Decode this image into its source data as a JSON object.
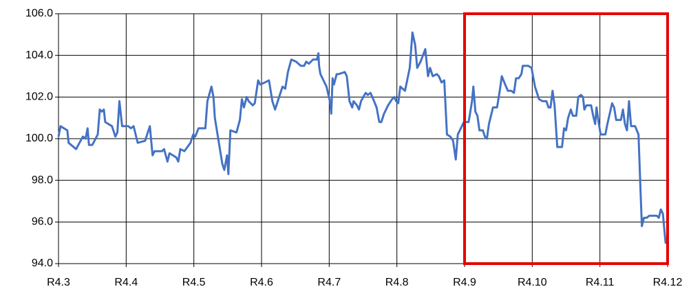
{
  "chart_data": {
    "type": "line",
    "x": [
      0,
      0.03,
      0.13,
      0.15,
      0.26,
      0.36,
      0.4,
      0.43,
      0.45,
      0.5,
      0.58,
      0.61,
      0.64,
      0.67,
      0.69,
      0.79,
      0.84,
      0.87,
      0.9,
      0.94,
      1.03,
      1.07,
      1.11,
      1.17,
      1.28,
      1.32,
      1.35,
      1.39,
      1.42,
      1.53,
      1.56,
      1.61,
      1.64,
      1.74,
      1.77,
      1.8,
      1.86,
      1.95,
      1.99,
      2.02,
      2.07,
      2.17,
      2.2,
      2.26,
      2.29,
      2.31,
      2.37,
      2.42,
      2.45,
      2.49,
      2.51,
      2.54,
      2.63,
      2.68,
      2.71,
      2.74,
      2.78,
      2.81,
      2.87,
      2.9,
      2.95,
      2.98,
      3.05,
      3.11,
      3.16,
      3.2,
      3.24,
      3.31,
      3.35,
      3.39,
      3.44,
      3.51,
      3.58,
      3.63,
      3.66,
      3.7,
      3.76,
      3.82,
      3.84,
      3.85,
      3.87,
      3.93,
      3.96,
      4.01,
      4.03,
      4.05,
      4.07,
      4.11,
      4.14,
      4.23,
      4.26,
      4.3,
      4.34,
      4.36,
      4.41,
      4.44,
      4.47,
      4.52,
      4.54,
      4.57,
      4.61,
      4.65,
      4.7,
      4.74,
      4.77,
      4.81,
      4.87,
      4.93,
      4.96,
      4.99,
      5.02,
      5.05,
      5.12,
      5.19,
      5.23,
      5.27,
      5.3,
      5.35,
      5.42,
      5.46,
      5.49,
      5.53,
      5.59,
      5.62,
      5.66,
      5.7,
      5.74,
      5.79,
      5.83,
      5.87,
      5.9,
      5.96,
      5.99,
      6.06,
      6.11,
      6.13,
      6.16,
      6.19,
      6.22,
      6.27,
      6.3,
      6.33,
      6.36,
      6.42,
      6.48,
      6.52,
      6.55,
      6.6,
      6.64,
      6.69,
      6.73,
      6.76,
      6.8,
      6.84,
      6.86,
      6.94,
      6.99,
      7.04,
      7.1,
      7.15,
      7.21,
      7.24,
      7.27,
      7.3,
      7.33,
      7.37,
      7.44,
      7.47,
      7.5,
      7.53,
      7.57,
      7.6,
      7.63,
      7.65,
      7.68,
      7.72,
      7.75,
      7.77,
      7.8,
      7.87,
      7.9,
      7.93,
      7.95,
      7.98,
      8.01,
      8.08,
      8.11,
      8.18,
      8.21,
      8.24,
      8.31,
      8.34,
      8.37,
      8.4,
      8.43,
      8.46,
      8.52,
      8.57,
      8.6,
      8.62,
      8.65,
      8.69,
      8.73,
      8.84,
      8.87,
      8.9,
      8.93,
      8.97,
      9.0
    ],
    "series": [
      {
        "color": "#4472c4",
        "values": [
          100.1,
          100.6,
          100.4,
          99.8,
          99.5,
          100.1,
          100.0,
          100.5,
          99.7,
          99.7,
          100.2,
          101.4,
          101.3,
          101.4,
          100.8,
          100.6,
          100.1,
          100.3,
          101.8,
          100.6,
          100.6,
          100.5,
          100.6,
          99.8,
          99.9,
          100.3,
          100.6,
          99.2,
          99.4,
          99.4,
          99.5,
          98.9,
          99.3,
          99.1,
          98.9,
          99.5,
          99.4,
          99.8,
          100.2,
          100.1,
          100.5,
          100.5,
          101.8,
          102.5,
          102.0,
          101.0,
          99.8,
          98.8,
          98.5,
          99.2,
          98.3,
          100.4,
          100.3,
          100.9,
          101.9,
          101.5,
          102.0,
          101.8,
          101.6,
          101.7,
          102.8,
          102.6,
          102.7,
          102.8,
          101.8,
          101.4,
          101.8,
          102.5,
          102.4,
          103.2,
          103.8,
          103.7,
          103.5,
          103.5,
          103.7,
          103.6,
          103.8,
          103.8,
          104.1,
          103.5,
          103.1,
          102.7,
          102.5,
          101.8,
          101.2,
          102.9,
          102.6,
          103.1,
          103.1,
          103.2,
          103.0,
          101.8,
          101.5,
          101.8,
          101.6,
          101.4,
          101.8,
          102.1,
          102.2,
          102.1,
          102.2,
          101.9,
          101.5,
          100.8,
          100.8,
          101.2,
          101.6,
          101.9,
          102.0,
          101.8,
          101.7,
          102.5,
          102.3,
          103.4,
          105.1,
          104.5,
          103.4,
          103.7,
          104.3,
          103.0,
          103.4,
          103.0,
          103.1,
          103.0,
          102.7,
          102.8,
          100.2,
          100.1,
          99.9,
          99.0,
          100.2,
          100.6,
          100.8,
          100.8,
          101.8,
          102.5,
          101.3,
          101.1,
          100.4,
          100.4,
          100.1,
          100.0,
          100.7,
          101.5,
          101.5,
          102.3,
          103.0,
          102.6,
          102.3,
          102.3,
          102.2,
          102.9,
          102.9,
          103.1,
          103.5,
          103.5,
          103.4,
          102.5,
          101.9,
          101.8,
          101.8,
          101.5,
          101.5,
          102.3,
          101.6,
          99.6,
          99.6,
          100.5,
          100.4,
          101.0,
          101.4,
          101.1,
          101.1,
          101.1,
          102.0,
          102.1,
          102.0,
          101.4,
          101.6,
          101.6,
          101.1,
          100.7,
          101.5,
          100.8,
          100.2,
          100.2,
          100.7,
          101.7,
          101.5,
          100.9,
          100.9,
          101.4,
          100.7,
          100.4,
          101.8,
          100.6,
          100.6,
          100.2,
          97.5,
          95.8,
          96.2,
          96.2,
          96.3,
          96.3,
          96.2,
          96.6,
          96.4,
          95.0,
          95.0
        ]
      }
    ],
    "xlim": [
      0,
      9
    ],
    "xticks": [
      {
        "value": 0,
        "label": "R4.3"
      },
      {
        "value": 1,
        "label": "R4.4"
      },
      {
        "value": 2,
        "label": "R4.5"
      },
      {
        "value": 3,
        "label": "R4.6"
      },
      {
        "value": 4,
        "label": "R4.7"
      },
      {
        "value": 5,
        "label": "R4.8"
      },
      {
        "value": 6,
        "label": "R4.9"
      },
      {
        "value": 7,
        "label": "R4.10"
      },
      {
        "value": 8,
        "label": "R4.11"
      },
      {
        "value": 9,
        "label": "R4.12"
      }
    ],
    "ylim": [
      94,
      106
    ],
    "yticks": [
      {
        "value": 94,
        "label": "94.0"
      },
      {
        "value": 96,
        "label": "96.0"
      },
      {
        "value": 98,
        "label": "98.0"
      },
      {
        "value": 100,
        "label": "100.0"
      },
      {
        "value": 102,
        "label": "102.0"
      },
      {
        "value": 104,
        "label": "104.0"
      },
      {
        "value": 106,
        "label": "106.0"
      }
    ],
    "grid": true,
    "highlight": {
      "x": [
        6,
        9
      ],
      "color": "#e60000"
    }
  }
}
